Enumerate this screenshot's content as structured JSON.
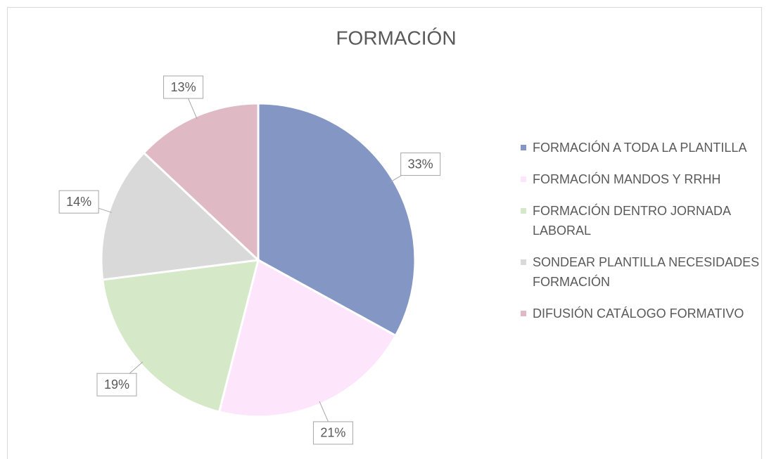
{
  "chart_data": {
    "type": "pie",
    "title": "FORMACIÓN",
    "categories": [
      "FORMACIÓN A TODA LA PLANTILLA",
      "FORMACIÓN MANDOS Y RRHH",
      "FORMACIÓN DENTRO JORNADA LABORAL",
      "SONDEAR PLANTILLA NECESIDADES FORMACIÓN",
      "DIFUSIÓN CATÁLOGO FORMATIVO"
    ],
    "values": [
      33,
      21,
      19,
      14,
      13
    ],
    "value_labels": [
      "33%",
      "21%",
      "19%",
      "14%",
      "13%"
    ],
    "colors": [
      "#8497c4",
      "#fde6fb",
      "#d5e8c8",
      "#d9d9d9",
      "#dfbac4"
    ],
    "legend": "right"
  }
}
